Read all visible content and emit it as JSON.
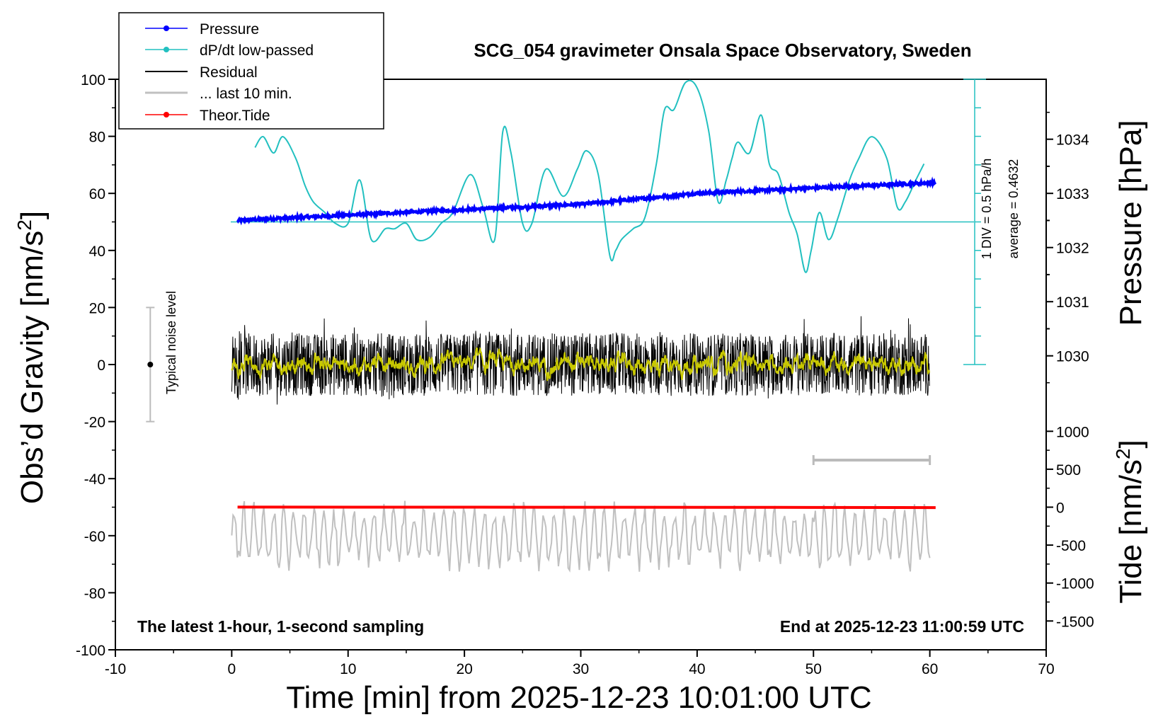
{
  "colors": {
    "pressure": "#0000ff",
    "dpdt": "#22c0c0",
    "residual": "#000000",
    "residual_smooth": "#c8c800",
    "last10": "#c0c0c0",
    "tide": "#ff0000",
    "noise": "#bbbbbb"
  },
  "chart_data": {
    "type": "line",
    "title": "SCG_054 gravimeter Onsala Space Observatory, Sweden",
    "xlabel": "Time [min] from 2025-12-23 10:01:00 UTC",
    "ylabel_left": "Obs’d Gravity [nm/s²]",
    "ylabel_right_pressure": "Pressure [hPa]",
    "ylabel_right_tide": "Tide [nm/s²]",
    "xlim": [
      -10,
      70
    ],
    "ylim": [
      -100,
      100
    ],
    "x_ticks": [
      "-10",
      "0",
      "10",
      "20",
      "30",
      "40",
      "50",
      "60",
      "70"
    ],
    "y_ticks": [
      "100",
      "80",
      "60",
      "40",
      "20",
      "0",
      "-20",
      "-40",
      "-60",
      "-80",
      "-100"
    ],
    "pressure_axis": {
      "ticks": [
        "1034",
        "1033",
        "1032",
        "1031",
        "1030"
      ],
      "values": [
        1034,
        1033,
        1032,
        1031,
        1030
      ]
    },
    "tide_axis": {
      "ticks": [
        "1000",
        "500",
        "0",
        "-500",
        "-1000",
        "-1500"
      ],
      "values": [
        1000,
        500,
        0,
        -500,
        -1000,
        -1500
      ]
    },
    "legend": [
      "Pressure",
      "dP/dt low-passed",
      "Residual",
      "... last 10 min.",
      "Theor.Tide"
    ],
    "annotations": {
      "dpdt_scale": "1 DIV = 0.5 hPa/h",
      "dpdt_average": "average = 0.4632",
      "noise_level": "Typical noise level",
      "footer_left": "The latest 1-hour, 1-second sampling",
      "footer_right": "End at 2025-12-23 11:00:59 UTC"
    },
    "series": [
      {
        "name": "Pressure",
        "unit": "hPa",
        "x": [
          0.5,
          10,
          20,
          30,
          40,
          50,
          60.5
        ],
        "values": [
          1032.5,
          1032.6,
          1032.7,
          1032.8,
          1033.0,
          1033.1,
          1033.2
        ]
      },
      {
        "name": "dP/dt low-passed",
        "unit": "hPa/h",
        "baseline": 0.4632,
        "x": [
          2,
          2.7,
          3.6,
          4.4,
          5.5,
          6.3,
          7,
          8,
          8.9,
          10,
          11,
          12,
          13.2,
          14,
          15,
          15.9,
          17,
          18,
          19,
          20.5,
          21.6,
          22.6,
          23.3,
          24,
          25,
          25.8,
          27,
          28.5,
          29.7,
          30.5,
          31.5,
          32.5,
          33,
          33.5,
          34.5,
          35.5,
          36.5,
          37.2,
          38,
          39,
          40,
          41,
          41.8,
          42.5,
          43,
          43.5,
          44.5,
          45.5,
          46.2,
          47,
          47.9,
          48.6,
          49.3,
          49.8,
          50.5,
          51.3,
          52.1,
          53.1,
          53.9,
          55,
          56.3,
          57.2,
          57.9,
          58.8,
          59.5
        ],
        "values": [
          1.15,
          1.25,
          1.1,
          1.25,
          1.05,
          0.8,
          0.65,
          0.55,
          0.45,
          0.45,
          0.85,
          0.3,
          0.4,
          0.4,
          0.45,
          0.3,
          0.32,
          0.45,
          0.55,
          0.9,
          0.6,
          0.3,
          1.3,
          1.1,
          0.45,
          0.45,
          0.95,
          0.7,
          0.95,
          1.12,
          0.9,
          0.15,
          0.2,
          0.3,
          0.4,
          0.5,
          1.0,
          1.5,
          1.5,
          1.75,
          1.7,
          1.3,
          0.65,
          0.85,
          1.05,
          1.2,
          1.1,
          1.45,
          1.0,
          0.9,
          0.55,
          0.35,
          0.0,
          0.2,
          0.55,
          0.3,
          0.5,
          0.85,
          1.05,
          1.25,
          1.05,
          0.6,
          0.65,
          0.85,
          1.0
        ]
      },
      {
        "name": "Residual",
        "unit": "nm/s²",
        "note": "1-second noise about zero",
        "x_range": [
          0,
          60
        ],
        "spread": [
          -12,
          18
        ]
      },
      {
        "name": "... last 10 min.",
        "unit": "nm/s²",
        "offset": -60,
        "x_range": [
          0,
          60
        ],
        "spread": [
          -76,
          -46
        ]
      },
      {
        "name": "Theor.Tide",
        "unit": "nm/s²",
        "x": [
          0.5,
          21,
          47,
          60.5
        ],
        "values": [
          1,
          0,
          -3,
          -6
        ]
      }
    ]
  }
}
